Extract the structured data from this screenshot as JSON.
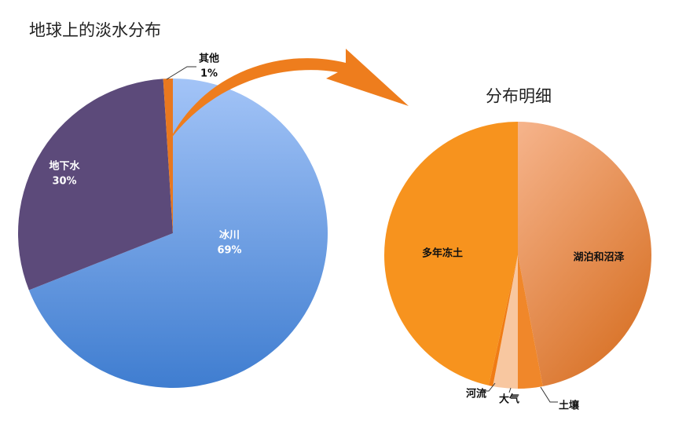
{
  "chart_data": [
    {
      "type": "pie",
      "title": "地球上的淡水分布",
      "categories": [
        "冰川",
        "地下水",
        "其他"
      ],
      "values": [
        69,
        30,
        1
      ],
      "value_labels": [
        "69%",
        "30%",
        "1%"
      ],
      "colors": [
        "#6f9fe6",
        "#5c4a7a",
        "#e8781f"
      ]
    },
    {
      "type": "pie",
      "title": "分布明细",
      "categories": [
        "湖泊和沼泽",
        "土壤",
        "大气",
        "河流",
        "多年冻土"
      ],
      "values": [
        47,
        3,
        3,
        0.5,
        46.5
      ],
      "colors": [
        "#e1955c",
        "#f0872a",
        "#f8c7a0",
        "#f07c14",
        "#f7931e"
      ]
    }
  ]
}
